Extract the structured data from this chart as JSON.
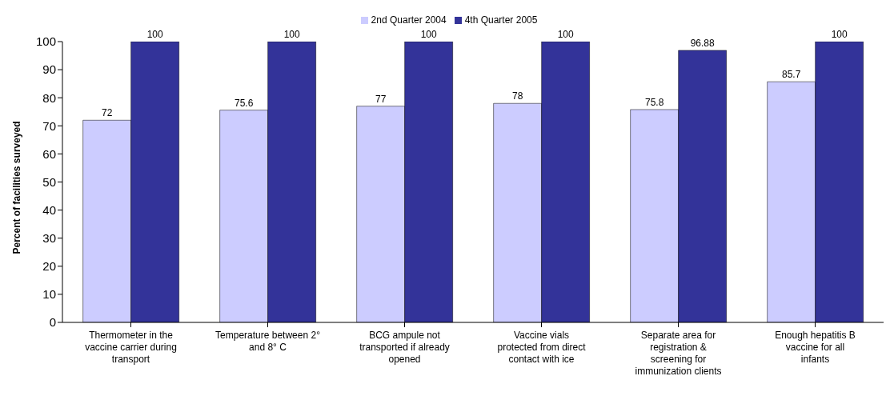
{
  "chart_data": {
    "type": "bar",
    "categories": [
      "Thermometer in the vaccine carrier during transport",
      "Temperature between 2° and 8° C",
      "BCG ampule not transported if already opened",
      "Vaccine vials protected from direct contact with ice",
      "Separate area for registration & screening for immunization clients",
      "Enough hepatitis B vaccine for all infants"
    ],
    "series": [
      {
        "name": "2nd Quarter 2004",
        "color": "#ccccff",
        "values": [
          72,
          75.6,
          77,
          78,
          75.8,
          85.7
        ]
      },
      {
        "name": "4th Quarter 2005",
        "color": "#333399",
        "values": [
          100,
          100,
          100,
          100,
          96.88,
          100
        ]
      }
    ],
    "ylabel": "Percent of facilities surveyed",
    "ylim": [
      0,
      100
    ],
    "yticks": [
      0,
      10,
      20,
      30,
      40,
      50,
      60,
      70,
      80,
      90,
      100
    ],
    "data_labels": true,
    "legend": "top",
    "grid": false
  }
}
